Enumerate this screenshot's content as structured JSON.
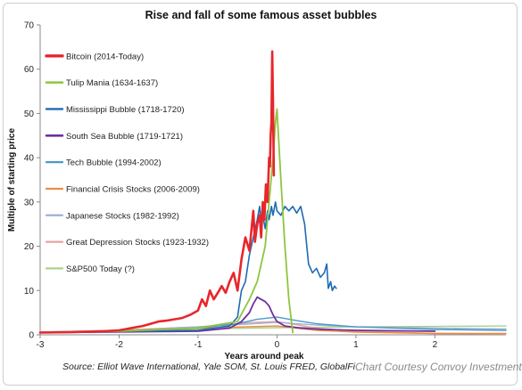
{
  "chart_data": {
    "type": "line",
    "title": "Rise and fall of some famous asset bubbles",
    "xlabel": "Years around peak",
    "ylabel": "Multiple of starting price",
    "xlim": [
      -3,
      2.9
    ],
    "ylim": [
      0,
      70
    ],
    "xticks": [
      -3,
      -2,
      -1,
      0,
      1,
      2
    ],
    "yticks": [
      0,
      10,
      20,
      30,
      40,
      50,
      60,
      70
    ],
    "grid": false,
    "legend_position": "left",
    "series": [
      {
        "name": "Bitcoin (2014-Today)",
        "color": "#e8262b",
        "width": 2.6,
        "x": [
          -3.0,
          -2.6,
          -2.2,
          -2.0,
          -1.85,
          -1.7,
          -1.6,
          -1.5,
          -1.4,
          -1.3,
          -1.2,
          -1.1,
          -1.0,
          -0.95,
          -0.9,
          -0.85,
          -0.8,
          -0.75,
          -0.7,
          -0.65,
          -0.6,
          -0.55,
          -0.5,
          -0.45,
          -0.4,
          -0.35,
          -0.3,
          -0.28,
          -0.25,
          -0.22,
          -0.2,
          -0.18,
          -0.16,
          -0.14,
          -0.12,
          -0.1,
          -0.09,
          -0.08,
          -0.07,
          -0.06,
          -0.05,
          -0.04
        ],
        "y": [
          0.5,
          0.6,
          0.8,
          1.0,
          1.5,
          2.0,
          2.5,
          3.0,
          3.2,
          3.5,
          3.8,
          4.5,
          5.5,
          8.0,
          6.5,
          10.0,
          8.0,
          9.5,
          11.0,
          9.5,
          12.0,
          14.0,
          10.0,
          17.0,
          22.0,
          19.0,
          28.0,
          21.0,
          25.0,
          27.0,
          22.0,
          30.0,
          26.0,
          34.0,
          30.0,
          40.0,
          38.0,
          45.0,
          48.0,
          64.0,
          52.0,
          36.0
        ]
      },
      {
        "name": "Tulip Mania (1634-1637)",
        "color": "#8dc63f",
        "width": 1.8,
        "x": [
          -3.0,
          -2.0,
          -1.0,
          -0.5,
          -0.35,
          -0.25,
          -0.15,
          -0.1,
          -0.05,
          -0.02,
          0.0,
          0.05,
          0.1,
          0.15,
          0.2
        ],
        "y": [
          0.5,
          0.8,
          1.5,
          3.0,
          8.0,
          12.0,
          20.0,
          30.0,
          40.0,
          48.0,
          51.0,
          35.0,
          20.0,
          8.0,
          0.5
        ]
      },
      {
        "name": "Mississippi Bubble (1718-1720)",
        "color": "#1f6bb5",
        "width": 1.6,
        "x": [
          -3.0,
          -1.0,
          -0.6,
          -0.5,
          -0.45,
          -0.4,
          -0.35,
          -0.3,
          -0.25,
          -0.22,
          -0.2,
          -0.18,
          -0.15,
          -0.12,
          -0.1,
          -0.07,
          -0.05,
          -0.02,
          0.0,
          0.05,
          0.1,
          0.15,
          0.2,
          0.25,
          0.3,
          0.35,
          0.4,
          0.45,
          0.5,
          0.55,
          0.6,
          0.63,
          0.65,
          0.68,
          0.7,
          0.73,
          0.75
        ],
        "y": [
          0.5,
          1.0,
          2.0,
          4.0,
          10.0,
          12.0,
          18.0,
          22.0,
          26.0,
          29.0,
          25.0,
          27.0,
          24.0,
          28.0,
          26.0,
          29.0,
          27.0,
          30.0,
          28.0,
          27.0,
          29.0,
          28.0,
          29.0,
          27.5,
          29.0,
          25.0,
          16.0,
          14.0,
          15.0,
          13.0,
          14.0,
          16.0,
          10.5,
          12.0,
          10.0,
          11.0,
          10.5
        ]
      },
      {
        "name": "South Sea Bubble (1719-1721)",
        "color": "#7030a0",
        "width": 1.8,
        "x": [
          -3.0,
          -1.0,
          -0.6,
          -0.45,
          -0.35,
          -0.3,
          -0.25,
          -0.2,
          -0.15,
          -0.1,
          -0.05,
          0.0,
          0.1,
          0.3,
          0.6,
          1.0,
          2.0
        ],
        "y": [
          0.5,
          0.8,
          1.5,
          3.0,
          5.0,
          7.0,
          8.5,
          8.0,
          7.5,
          6.5,
          4.5,
          3.0,
          2.0,
          1.5,
          1.2,
          1.0,
          0.8
        ]
      },
      {
        "name": "Tech Bubble (1994-2002)",
        "color": "#4a9ac9",
        "width": 1.4,
        "x": [
          -3.0,
          -2.0,
          -1.0,
          -0.5,
          -0.25,
          0.0,
          0.25,
          0.5,
          1.0,
          2.0,
          2.9
        ],
        "y": [
          0.5,
          0.8,
          1.5,
          2.5,
          3.5,
          4.0,
          3.2,
          2.5,
          1.8,
          1.2,
          1.0
        ]
      },
      {
        "name": "Financial Crisis Stocks (2006-2009)",
        "color": "#f08a3c",
        "width": 1.4,
        "x": [
          -3.0,
          -2.0,
          -1.0,
          0.0,
          0.5,
          1.0,
          2.0,
          2.9
        ],
        "y": [
          0.5,
          1.0,
          1.5,
          2.0,
          1.0,
          0.6,
          0.3,
          0.3
        ]
      },
      {
        "name": "Japanese Stocks (1982-1992)",
        "color": "#9bb3d8",
        "width": 1.4,
        "x": [
          -3.0,
          -2.0,
          -1.0,
          -0.3,
          0.0,
          0.5,
          1.0,
          2.0,
          2.9
        ],
        "y": [
          0.6,
          1.0,
          1.8,
          2.5,
          2.8,
          2.2,
          1.8,
          1.5,
          1.3
        ]
      },
      {
        "name": "Great Depression Stocks (1923-1932)",
        "color": "#e8a3a3",
        "width": 1.4,
        "x": [
          -3.0,
          -2.0,
          -1.0,
          -0.3,
          0.0,
          0.5,
          1.0,
          2.0,
          2.9
        ],
        "y": [
          0.6,
          1.0,
          1.8,
          2.8,
          3.0,
          1.5,
          0.8,
          0.3,
          0.2
        ]
      },
      {
        "name": "S&P500 Today (?)",
        "color": "#a6d08a",
        "width": 1.4,
        "x": [
          -3.0,
          -2.0,
          -1.0,
          0.0,
          1.0,
          2.0,
          2.9
        ],
        "y": [
          0.6,
          1.0,
          1.3,
          1.6,
          1.8,
          1.9,
          2.0
        ]
      }
    ]
  },
  "source": "Source: Elliot Wave International, Yale SOM, St. Louis FRED, GlobalFi",
  "credit": "Chart Courtesy Convoy Investments"
}
